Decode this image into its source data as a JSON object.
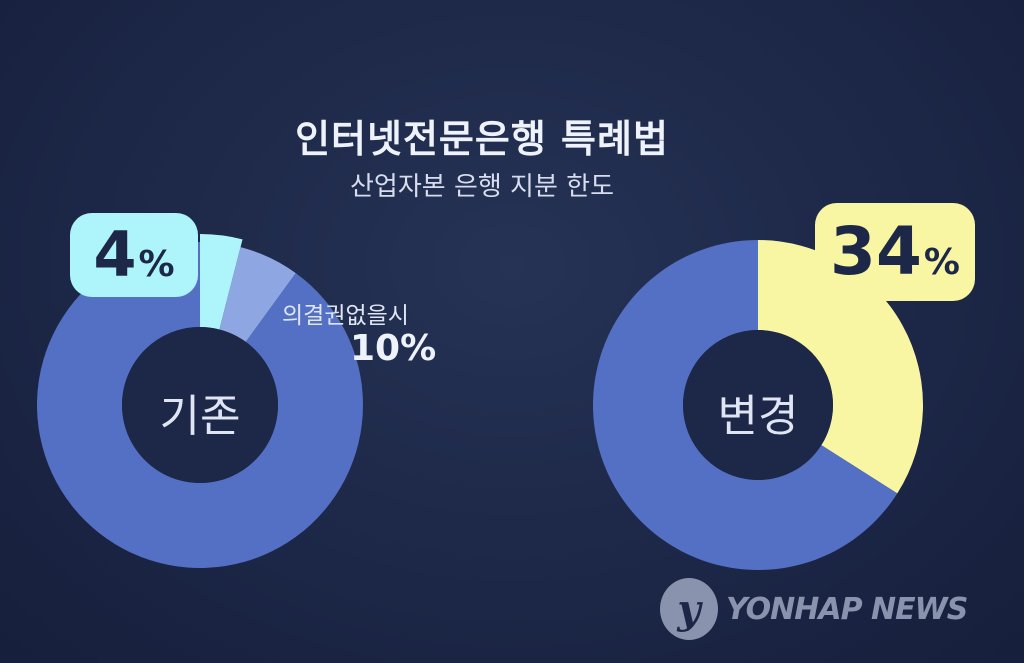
{
  "chart_data": [
    {
      "type": "pie",
      "title": "인터넷전문은행 특례법",
      "subtitle": "산업자본 은행 지분 한도",
      "center_label": "기존",
      "slices": [
        {
          "label": "4%",
          "value": 4,
          "color": "#aef5fb"
        },
        {
          "label": "의결권없을시 10%",
          "value": 6,
          "color": "#8ea6e2"
        },
        {
          "label": "",
          "value": 90,
          "color": "#5470c4"
        }
      ],
      "badge": "4",
      "annotation_text": "의결권없을시",
      "annotation_value": "10%"
    },
    {
      "type": "pie",
      "center_label": "변경",
      "slices": [
        {
          "label": "34%",
          "value": 34,
          "color": "#f9f6a3"
        },
        {
          "label": "",
          "value": 66,
          "color": "#5470c4"
        }
      ],
      "badge": "34"
    }
  ],
  "percent_sign": "%",
  "logo": {
    "mark": "y",
    "text": "YONHAP NEWS"
  },
  "colors": {
    "background": "#1c2646",
    "hole": "#1d2848"
  }
}
